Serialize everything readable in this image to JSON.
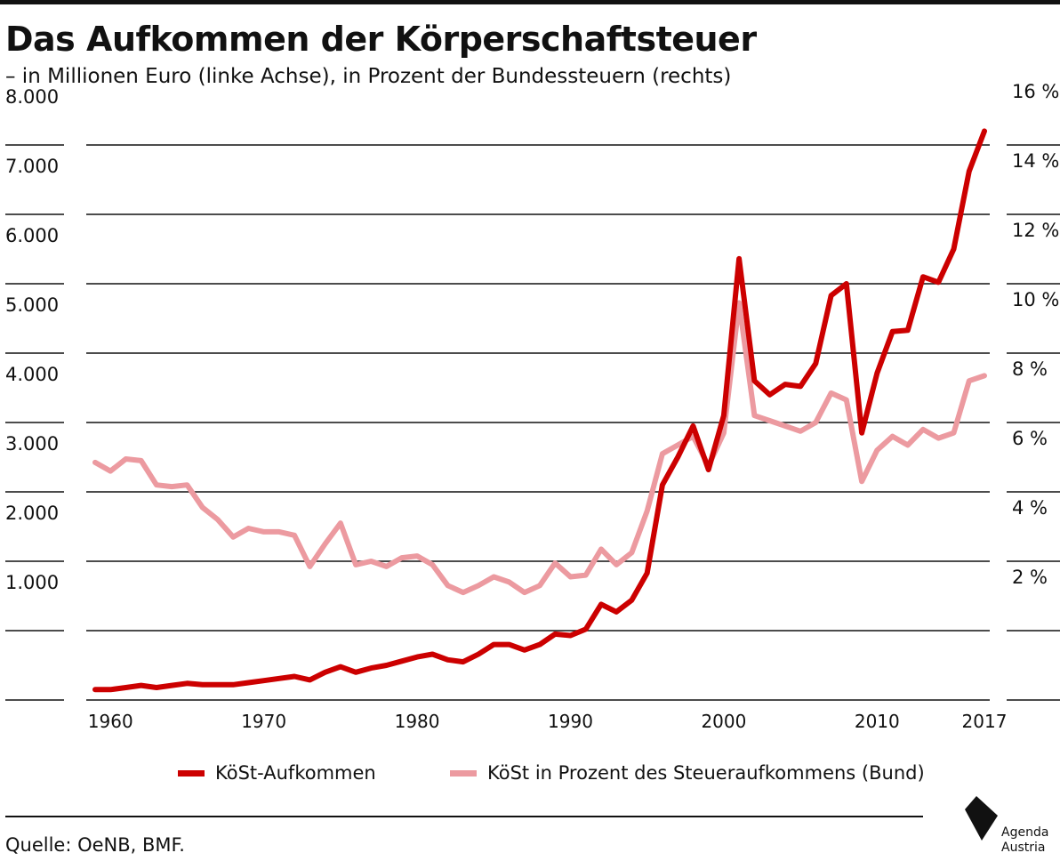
{
  "title": "Das Aufkommen der Körperschaftsteuer",
  "subtitle": "– in Millionen Euro (linke Achse), in Prozent der Bundessteuern (rechts)",
  "source": "Quelle: OeNB, BMF.",
  "logo": {
    "line1": "Agenda",
    "line2": "Austria"
  },
  "colors": {
    "revenue": "#cc0000",
    "percent": "#ec9aa0",
    "grid": "#111111"
  },
  "chart_data": {
    "type": "line",
    "x_ticks": [
      1960,
      1970,
      1980,
      1990,
      2000,
      2010,
      2017
    ],
    "xlim": [
      1959,
      2017
    ],
    "y_left_ticks": [
      1000,
      2000,
      3000,
      4000,
      5000,
      6000,
      7000,
      8000
    ],
    "y_left_tick_labels": [
      "1.000",
      "2.000",
      "3.000",
      "4.000",
      "5.000",
      "6.000",
      "7.000",
      "8.000"
    ],
    "y_right_ticks": [
      2,
      4,
      6,
      8,
      10,
      12,
      14,
      16
    ],
    "y_right_tick_labels": [
      "2 %",
      "4 %",
      "6 %",
      "8 %",
      "10 %",
      "12 %",
      "14 %",
      "16 %"
    ],
    "grid": true,
    "legend_position": "bottom",
    "series": [
      {
        "name": "KöSt-Aufkommen",
        "axis": "left",
        "color": "#cc0000",
        "x": [
          1959,
          1960,
          1961,
          1962,
          1963,
          1964,
          1965,
          1966,
          1967,
          1968,
          1969,
          1970,
          1971,
          1972,
          1973,
          1974,
          1975,
          1976,
          1977,
          1978,
          1979,
          1980,
          1981,
          1982,
          1983,
          1984,
          1985,
          1986,
          1987,
          1988,
          1989,
          1990,
          1991,
          1992,
          1993,
          1994,
          1995,
          1996,
          1997,
          1998,
          1999,
          2000,
          2001,
          2002,
          2003,
          2004,
          2005,
          2006,
          2007,
          2008,
          2009,
          2010,
          2011,
          2012,
          2013,
          2014,
          2015,
          2016,
          2017
        ],
        "values": [
          150,
          150,
          180,
          210,
          180,
          210,
          240,
          220,
          220,
          220,
          250,
          280,
          310,
          340,
          290,
          400,
          480,
          400,
          460,
          500,
          560,
          620,
          660,
          580,
          550,
          660,
          800,
          800,
          720,
          800,
          950,
          930,
          1020,
          1380,
          1270,
          1440,
          1830,
          3100,
          3500,
          3950,
          3320,
          4100,
          6360,
          4600,
          4400,
          4550,
          4520,
          4850,
          5830,
          6000,
          3850,
          4710,
          5310,
          5330,
          6100,
          6020,
          6500,
          7620,
          8200
        ]
      },
      {
        "name": "KöSt in Prozent des Steueraufkommens (Bund)",
        "axis": "right",
        "color": "#ec9aa0",
        "x": [
          1959,
          1960,
          1961,
          1962,
          1963,
          1964,
          1965,
          1966,
          1967,
          1968,
          1969,
          1970,
          1971,
          1972,
          1973,
          1974,
          1975,
          1976,
          1977,
          1978,
          1979,
          1980,
          1981,
          1982,
          1983,
          1984,
          1985,
          1986,
          1987,
          1988,
          1989,
          1990,
          1991,
          1992,
          1993,
          1994,
          1995,
          1996,
          1997,
          1998,
          1999,
          2000,
          2001,
          2002,
          2003,
          2004,
          2005,
          2006,
          2007,
          2008,
          2009,
          2010,
          2011,
          2012,
          2013,
          2014,
          2015,
          2016,
          2017
        ],
        "values": [
          6.85,
          6.6,
          6.95,
          6.9,
          6.2,
          6.15,
          6.2,
          5.55,
          5.2,
          4.7,
          4.95,
          4.85,
          4.85,
          4.75,
          3.85,
          4.5,
          5.1,
          3.9,
          4.0,
          3.85,
          4.1,
          4.15,
          3.9,
          3.3,
          3.1,
          3.3,
          3.55,
          3.4,
          3.1,
          3.3,
          3.95,
          3.55,
          3.6,
          4.35,
          3.9,
          4.25,
          5.45,
          7.1,
          7.35,
          7.6,
          6.75,
          7.7,
          11.45,
          8.2,
          8.05,
          7.9,
          7.75,
          8.0,
          8.85,
          8.65,
          6.3,
          7.2,
          7.6,
          7.35,
          7.8,
          7.55,
          7.7,
          9.2,
          9.35
        ]
      }
    ]
  }
}
